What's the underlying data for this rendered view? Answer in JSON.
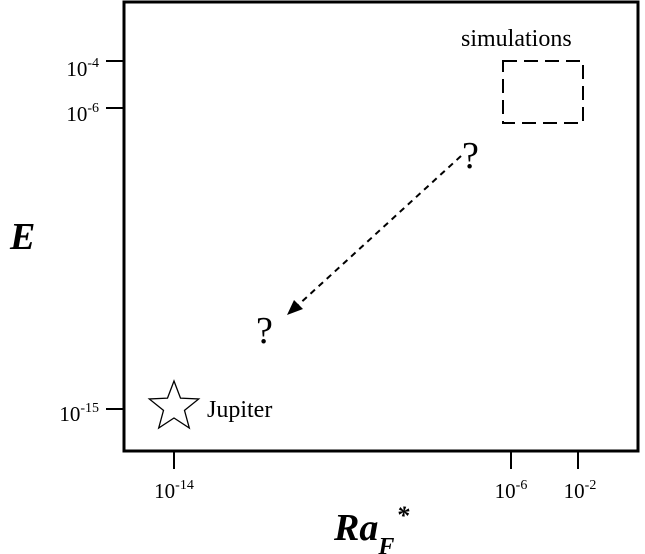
{
  "diagram": {
    "y_axis_title": "E",
    "x_axis_title": {
      "base": "Ra",
      "subscript": "F",
      "superscript": "*"
    },
    "y_ticks": [
      {
        "base": "10",
        "exp": "-4"
      },
      {
        "base": "10",
        "exp": "-6"
      },
      {
        "base": "10",
        "exp": "-15"
      }
    ],
    "x_ticks": [
      {
        "base": "10",
        "exp": "-14"
      },
      {
        "base": "10",
        "exp": "-6"
      },
      {
        "base": "10",
        "exp": "-2"
      }
    ],
    "simulations_label": "simulations",
    "jupiter_label": "Jupiter",
    "question_upper": "?",
    "question_lower": "?",
    "colors": {
      "ink": "#000000",
      "background": "#ffffff"
    },
    "icons": {
      "jupiter_marker": "star-icon"
    }
  }
}
